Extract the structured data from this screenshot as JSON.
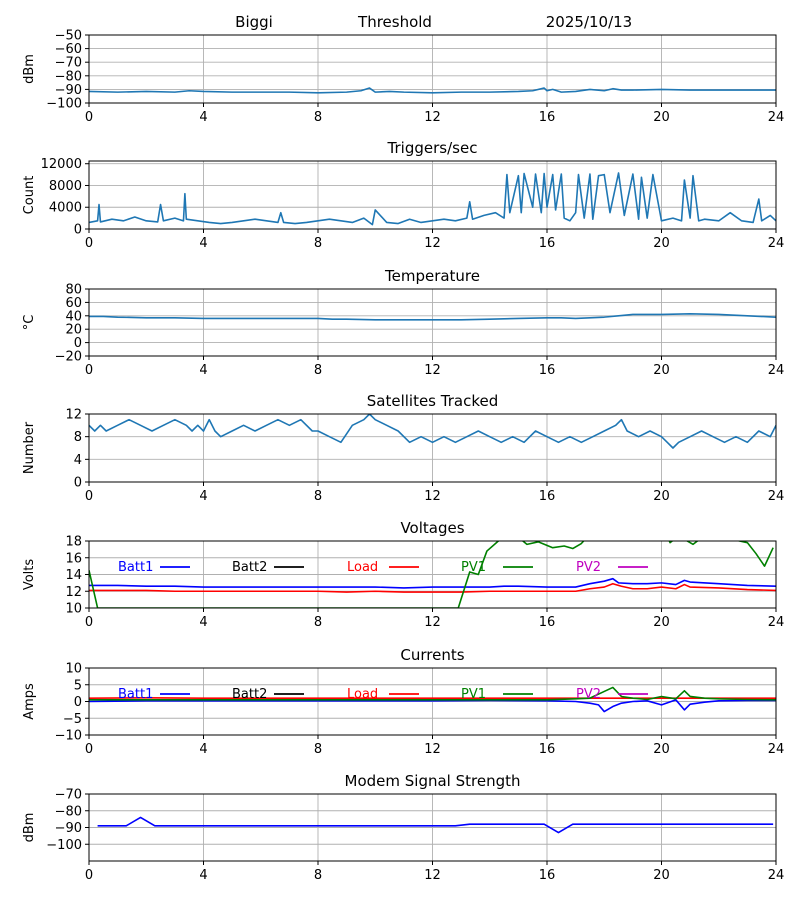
{
  "header": {
    "station": "Biggi",
    "mode": "Threshold",
    "date": "2025/10/13"
  },
  "chart_data": [
    {
      "id": "signal",
      "type": "line",
      "title": "",
      "ylabel": "dBm",
      "xlim": [
        0,
        24
      ],
      "ylim": [
        -100,
        -50
      ],
      "xticks": [
        0,
        4,
        8,
        12,
        16,
        20,
        24
      ],
      "yticks": [
        -100,
        -90,
        -80,
        -70,
        -60,
        -50
      ],
      "grid": true,
      "series": [
        {
          "color": "#1f77b4",
          "x": [
            0,
            1,
            2,
            3,
            3.5,
            4,
            5,
            6,
            7,
            8,
            9,
            9.5,
            9.8,
            10,
            10.5,
            11,
            12,
            13,
            14,
            15,
            15.5,
            15.9,
            16,
            16.2,
            16.5,
            17,
            17.5,
            18,
            18.3,
            18.6,
            19,
            20,
            21,
            22,
            23,
            24
          ],
          "y": [
            -91.5,
            -92,
            -91.5,
            -92,
            -91,
            -91.5,
            -92,
            -92,
            -92,
            -92.5,
            -92,
            -91,
            -89,
            -92,
            -91.5,
            -92,
            -92.5,
            -92,
            -92,
            -91.5,
            -91,
            -89,
            -91,
            -90,
            -92,
            -91.5,
            -90,
            -91,
            -89.5,
            -90.5,
            -90.5,
            -90,
            -90.5,
            -90.5,
            -90.5,
            -90.5
          ]
        }
      ]
    },
    {
      "id": "triggers",
      "type": "line",
      "title": "Triggers/sec",
      "ylabel": "Count",
      "xlim": [
        0,
        24
      ],
      "ylim": [
        0,
        12500
      ],
      "xticks": [
        0,
        4,
        8,
        12,
        16,
        20,
        24
      ],
      "yticks": [
        0,
        4000,
        8000,
        12000
      ],
      "grid": true,
      "series": [
        {
          "color": "#1f77b4",
          "x": [
            0,
            0.3,
            0.35,
            0.4,
            0.8,
            1.2,
            1.6,
            2,
            2.4,
            2.5,
            2.6,
            3,
            3.3,
            3.35,
            3.4,
            3.8,
            4.2,
            4.6,
            5,
            5.4,
            5.8,
            6.2,
            6.6,
            6.7,
            6.8,
            7.2,
            7.6,
            8,
            8.4,
            8.8,
            9.2,
            9.6,
            9.9,
            10,
            10.4,
            10.8,
            11.2,
            11.6,
            12,
            12.4,
            12.8,
            13.2,
            13.3,
            13.4,
            13.8,
            14.2,
            14.5,
            14.6,
            14.7,
            15,
            15.1,
            15.2,
            15.5,
            15.6,
            15.8,
            15.9,
            16,
            16.2,
            16.3,
            16.5,
            16.6,
            16.8,
            17,
            17.1,
            17.3,
            17.5,
            17.6,
            17.8,
            18,
            18.2,
            18.5,
            18.7,
            19,
            19.2,
            19.3,
            19.5,
            19.7,
            20,
            20.4,
            20.7,
            20.8,
            21,
            21.1,
            21.3,
            21.5,
            22,
            22.4,
            22.8,
            23.2,
            23.4,
            23.5,
            23.8,
            24
          ],
          "y": [
            1200,
            1500,
            4500,
            1300,
            1800,
            1500,
            2200,
            1500,
            1300,
            4500,
            1500,
            2000,
            1500,
            6500,
            1800,
            1500,
            1200,
            1000,
            1200,
            1500,
            1800,
            1500,
            1200,
            3000,
            1200,
            1000,
            1200,
            1500,
            1800,
            1500,
            1200,
            2000,
            800,
            3500,
            1200,
            1000,
            1800,
            1200,
            1500,
            1800,
            1500,
            2000,
            5000,
            1800,
            2500,
            3000,
            2000,
            10000,
            3000,
            9800,
            3000,
            10200,
            4000,
            10100,
            3000,
            10200,
            4000,
            10000,
            3500,
            10100,
            2000,
            1500,
            3000,
            10000,
            2000,
            10100,
            1800,
            9800,
            10000,
            3000,
            10300,
            2500,
            10100,
            1800,
            9500,
            2000,
            10000,
            1500,
            2000,
            1500,
            9000,
            2000,
            9800,
            1500,
            1800,
            1500,
            3000,
            1500,
            1200,
            5500,
            1500,
            2500,
            1500
          ]
        }
      ]
    },
    {
      "id": "temperature",
      "type": "line",
      "title": "Temperature",
      "ylabel": "°C",
      "xlim": [
        0,
        24
      ],
      "ylim": [
        -20,
        80
      ],
      "xticks": [
        0,
        4,
        8,
        12,
        16,
        20,
        24
      ],
      "yticks": [
        -20,
        0,
        20,
        40,
        60,
        80
      ],
      "grid": true,
      "series": [
        {
          "color": "#1f77b4",
          "x": [
            0,
            0.5,
            1,
            2,
            3,
            4,
            5,
            6,
            7,
            8,
            8.5,
            9,
            10,
            11,
            12,
            13,
            14,
            15,
            16,
            16.5,
            17,
            17.5,
            18,
            18.5,
            19,
            20,
            21,
            22,
            23,
            24
          ],
          "y": [
            39,
            39,
            38,
            37,
            37,
            36,
            36,
            36,
            36,
            36,
            35,
            35,
            34,
            34,
            34,
            34,
            35,
            36,
            37,
            37,
            36,
            37,
            38,
            40,
            42,
            42,
            43,
            42,
            40,
            38
          ]
        }
      ]
    },
    {
      "id": "satellites",
      "type": "line",
      "title": "Satellites Tracked",
      "ylabel": "Number",
      "xlim": [
        0,
        24
      ],
      "ylim": [
        0,
        12
      ],
      "xticks": [
        0,
        4,
        8,
        12,
        16,
        20,
        24
      ],
      "yticks": [
        0,
        4,
        8,
        12
      ],
      "grid": true,
      "series": [
        {
          "color": "#1f77b4",
          "x": [
            0,
            0.2,
            0.4,
            0.6,
            1,
            1.4,
            1.8,
            2.2,
            2.6,
            3,
            3.4,
            3.6,
            3.8,
            4,
            4.2,
            4.4,
            4.6,
            5,
            5.4,
            5.8,
            6.2,
            6.6,
            7,
            7.4,
            7.8,
            8,
            8.4,
            8.8,
            9.2,
            9.6,
            9.8,
            10,
            10.4,
            10.8,
            11.2,
            11.6,
            12,
            12.4,
            12.8,
            13.2,
            13.6,
            14,
            14.4,
            14.8,
            15.2,
            15.6,
            16,
            16.4,
            16.8,
            17.2,
            17.6,
            18,
            18.4,
            18.6,
            18.8,
            19.2,
            19.6,
            20,
            20.2,
            20.4,
            20.6,
            21,
            21.4,
            21.8,
            22.2,
            22.6,
            23,
            23.4,
            23.8,
            24
          ],
          "y": [
            10,
            9,
            10,
            9,
            10,
            11,
            10,
            9,
            10,
            11,
            10,
            9,
            10,
            9,
            11,
            9,
            8,
            9,
            10,
            9,
            10,
            11,
            10,
            11,
            9,
            9,
            8,
            7,
            10,
            11,
            12,
            11,
            10,
            9,
            7,
            8,
            7,
            8,
            7,
            8,
            9,
            8,
            7,
            8,
            7,
            9,
            8,
            7,
            8,
            7,
            8,
            9,
            10,
            11,
            9,
            8,
            9,
            8,
            7,
            6,
            7,
            8,
            9,
            8,
            7,
            8,
            7,
            9,
            8,
            10
          ]
        }
      ]
    },
    {
      "id": "voltages",
      "type": "line",
      "title": "Voltages",
      "ylabel": "Volts",
      "xlim": [
        0,
        24
      ],
      "ylim": [
        10,
        18
      ],
      "xticks": [
        0,
        4,
        8,
        12,
        16,
        20,
        24
      ],
      "yticks": [
        10,
        12,
        14,
        16,
        18
      ],
      "grid": true,
      "legend": "top",
      "series": [
        {
          "name": "Batt1",
          "color": "#0000ff",
          "x": [
            0,
            1,
            2,
            3,
            4,
            5,
            6,
            7,
            8,
            9,
            10,
            11,
            12,
            13,
            14,
            14.5,
            15,
            16,
            17,
            17.5,
            18,
            18.3,
            18.5,
            19,
            19.5,
            20,
            20.5,
            20.8,
            21,
            22,
            23,
            24
          ],
          "y": [
            12.7,
            12.7,
            12.6,
            12.6,
            12.5,
            12.5,
            12.5,
            12.5,
            12.5,
            12.5,
            12.5,
            12.4,
            12.5,
            12.5,
            12.5,
            12.6,
            12.6,
            12.5,
            12.5,
            12.9,
            13.2,
            13.5,
            13,
            12.9,
            12.9,
            13,
            12.8,
            13.3,
            13.1,
            12.9,
            12.7,
            12.6
          ]
        },
        {
          "name": "Batt2",
          "color": "#000000",
          "x": [],
          "y": []
        },
        {
          "name": "Load",
          "color": "#ff0000",
          "x": [
            0,
            1,
            2,
            3,
            4,
            5,
            6,
            7,
            8,
            9,
            10,
            11,
            12,
            13,
            14,
            15,
            16,
            17,
            17.5,
            18,
            18.3,
            18.6,
            19,
            19.5,
            20,
            20.5,
            20.8,
            21,
            22,
            23,
            24
          ],
          "y": [
            12.1,
            12.1,
            12.1,
            12,
            12,
            12,
            12,
            12,
            12,
            11.9,
            12,
            11.9,
            11.9,
            11.9,
            12,
            12,
            12,
            12,
            12.3,
            12.5,
            12.9,
            12.6,
            12.3,
            12.3,
            12.5,
            12.3,
            12.8,
            12.5,
            12.4,
            12.2,
            12.1
          ]
        },
        {
          "name": "PV1",
          "color": "#008000",
          "x": [
            0,
            0.3,
            12.9,
            13.3,
            13.6,
            13.9,
            14.3,
            14.8,
            15.3,
            15.7,
            16.2,
            16.6,
            16.9,
            17.2,
            17.6,
            18.1,
            18.6,
            19.1,
            19.6,
            20.1,
            20.3,
            20.6,
            21.1,
            21.6,
            22.1,
            22.6,
            23,
            23.3,
            23.6,
            23.9
          ],
          "y": [
            14.5,
            10,
            10,
            14.3,
            14,
            16.8,
            18,
            19,
            17.6,
            17.9,
            17.2,
            17.4,
            17.1,
            17.7,
            19.2,
            18.9,
            19.6,
            19.1,
            18.6,
            19.3,
            17.8,
            18.6,
            17.6,
            18.9,
            18.2,
            18.1,
            17.8,
            16.5,
            15,
            17.2
          ]
        },
        {
          "name": "PV2",
          "color": "#bf00bf",
          "x": [],
          "y": []
        }
      ]
    },
    {
      "id": "currents",
      "type": "line",
      "title": "Currents",
      "ylabel": "Amps",
      "xlim": [
        0,
        24
      ],
      "ylim": [
        -10,
        10
      ],
      "xticks": [
        0,
        4,
        8,
        12,
        16,
        20,
        24
      ],
      "yticks": [
        -10,
        -5,
        0,
        5,
        10
      ],
      "grid": true,
      "legend": "top",
      "series": [
        {
          "name": "Batt1",
          "color": "#0000ff",
          "x": [
            0,
            2,
            4,
            6,
            8,
            10,
            12,
            14,
            16,
            17,
            17.5,
            17.8,
            18,
            18.3,
            18.6,
            19,
            19.5,
            20,
            20.5,
            20.8,
            21,
            21.5,
            22,
            23,
            24
          ],
          "y": [
            0,
            0.2,
            0.2,
            0.2,
            0.2,
            0.2,
            0.2,
            0.3,
            0.2,
            0,
            -0.5,
            -1,
            -3,
            -1.5,
            -0.5,
            0,
            0.2,
            -1,
            0.5,
            -2.5,
            -0.8,
            -0.2,
            0.2,
            0.3,
            0.3
          ]
        },
        {
          "name": "Batt2",
          "color": "#000000",
          "x": [],
          "y": []
        },
        {
          "name": "Load",
          "color": "#ff0000",
          "x": [
            0,
            2,
            4,
            6,
            8,
            10,
            12,
            14,
            16,
            18,
            20,
            22,
            24
          ],
          "y": [
            1,
            1.1,
            1,
            1,
            1,
            1,
            1,
            1,
            1,
            1,
            1,
            1,
            1
          ]
        },
        {
          "name": "PV1",
          "color": "#008000",
          "x": [
            0,
            2,
            4,
            6,
            8,
            10,
            12,
            13,
            14,
            15,
            16,
            17,
            17.5,
            18,
            18.3,
            18.6,
            19,
            19.5,
            20,
            20.5,
            20.8,
            21,
            21.5,
            22,
            23,
            24
          ],
          "y": [
            0.5,
            0.5,
            0.5,
            0.5,
            0.5,
            0.5,
            0.5,
            0.5,
            0.5,
            0.5,
            0.5,
            0.8,
            1,
            3,
            4.2,
            1.5,
            1,
            0.6,
            1.5,
            0.8,
            3.2,
            1.5,
            1,
            0.8,
            0.6,
            0.5
          ]
        },
        {
          "name": "PV2",
          "color": "#bf00bf",
          "x": [],
          "y": []
        }
      ]
    },
    {
      "id": "modem",
      "type": "line",
      "title": "Modem Signal Strength",
      "ylabel": "dBm",
      "xlim": [
        0,
        24
      ],
      "ylim": [
        -110,
        -70
      ],
      "xticks": [
        0,
        4,
        8,
        12,
        16,
        20,
        24
      ],
      "yticks": [
        -100,
        -90,
        -80,
        -70
      ],
      "grid": true,
      "series": [
        {
          "color": "#0000ff",
          "x": [
            0.3,
            1.3,
            1.8,
            2.3,
            4,
            6,
            8,
            10,
            12,
            12.8,
            13.3,
            14,
            15,
            15.9,
            16.4,
            16.9,
            18,
            20,
            22,
            23.9
          ],
          "y": [
            -89,
            -89,
            -84,
            -89,
            -89,
            -89,
            -89,
            -89,
            -89,
            -89,
            -88,
            -88,
            -88,
            -88,
            -93,
            -88,
            -88,
            -88,
            -88,
            -88
          ]
        }
      ]
    }
  ]
}
